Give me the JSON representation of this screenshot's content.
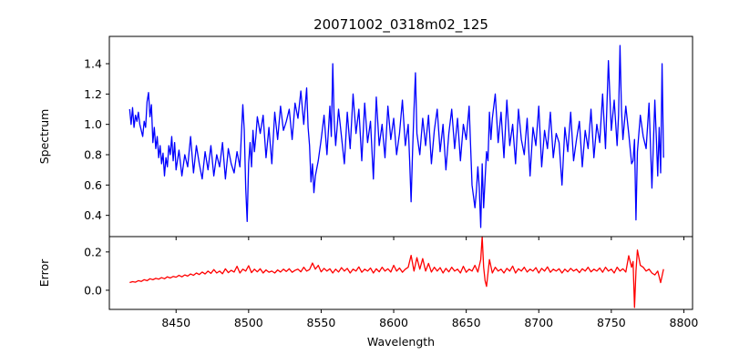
{
  "chart_data": [
    {
      "type": "line",
      "title": "20071002_0318m02_125",
      "xlabel": "",
      "ylabel": "Spectrum",
      "xlim": [
        8404,
        8806
      ],
      "ylim": [
        0.26,
        1.58
      ],
      "xticks": [
        8400,
        8450,
        8500,
        8550,
        8600,
        8650,
        8700,
        8750,
        8800
      ],
      "yticks": [
        0.4,
        0.6,
        0.8,
        1.0,
        1.2,
        1.4
      ],
      "ytick_labels": [
        "0.4",
        "0.6",
        "0.8",
        "1.0",
        "1.2",
        "1.4"
      ],
      "color": "#0000ff",
      "series": [
        {
          "x": [
            8418,
            8419,
            8420,
            8421,
            8422,
            8423,
            8424,
            8425,
            8426,
            8427,
            8428,
            8429,
            8430,
            8431,
            8432,
            8433,
            8434,
            8435,
            8436,
            8437,
            8438,
            8439,
            8440,
            8441,
            8442,
            8443,
            8444,
            8445,
            8446,
            8447,
            8448,
            8449,
            8450,
            8452,
            8454,
            8456,
            8458,
            8460,
            8462,
            8464,
            8466,
            8468,
            8470,
            8472,
            8474,
            8476,
            8478,
            8480,
            8482,
            8484,
            8486,
            8488,
            8490,
            8492,
            8494,
            8495,
            8496,
            8497,
            8498,
            8499,
            8500,
            8501,
            8502,
            8503,
            8504,
            8505,
            8506,
            8508,
            8510,
            8512,
            8514,
            8516,
            8518,
            8520,
            8522,
            8524,
            8526,
            8528,
            8530,
            8532,
            8534,
            8536,
            8538,
            8540,
            8541,
            8542,
            8543,
            8544,
            8545,
            8546,
            8548,
            8550,
            8552,
            8554,
            8556,
            8557,
            8558,
            8559,
            8560,
            8562,
            8564,
            8566,
            8568,
            8570,
            8572,
            8574,
            8576,
            8578,
            8580,
            8582,
            8584,
            8586,
            8588,
            8590,
            8592,
            8594,
            8596,
            8598,
            8600,
            8602,
            8604,
            8606,
            8608,
            8610,
            8611,
            8612,
            8613,
            8614,
            8615,
            8616,
            8618,
            8620,
            8622,
            8624,
            8626,
            8628,
            8630,
            8632,
            8634,
            8636,
            8638,
            8640,
            8642,
            8644,
            8646,
            8648,
            8650,
            8652,
            8654,
            8656,
            8657,
            8658,
            8659,
            8660,
            8661,
            8662,
            8663,
            8664,
            8665,
            8666,
            8667,
            8668,
            8670,
            8672,
            8674,
            8676,
            8678,
            8680,
            8682,
            8684,
            8686,
            8688,
            8690,
            8692,
            8694,
            8696,
            8698,
            8700,
            8702,
            8704,
            8706,
            8708,
            8710,
            8712,
            8714,
            8716,
            8718,
            8720,
            8722,
            8724,
            8726,
            8728,
            8730,
            8732,
            8734,
            8736,
            8738,
            8740,
            8742,
            8744,
            8746,
            8748,
            8750,
            8752,
            8754,
            8755,
            8756,
            8757,
            8758,
            8760,
            8762,
            8764,
            8765,
            8766,
            8767,
            8768,
            8770,
            8772,
            8774,
            8776,
            8778,
            8780,
            8781,
            8782,
            8783,
            8784,
            8785,
            8786
          ],
          "y": [
            1.1,
            1.0,
            1.11,
            0.98,
            1.06,
            1.02,
            1.08,
            1.0,
            0.96,
            0.92,
            1.02,
            0.98,
            1.15,
            1.21,
            1.05,
            1.13,
            0.88,
            0.98,
            0.84,
            0.92,
            0.78,
            0.86,
            0.74,
            0.81,
            0.66,
            0.78,
            0.72,
            0.86,
            0.8,
            0.92,
            0.76,
            0.88,
            0.7,
            0.83,
            0.66,
            0.8,
            0.72,
            0.92,
            0.68,
            0.86,
            0.74,
            0.64,
            0.82,
            0.7,
            0.86,
            0.66,
            0.8,
            0.72,
            0.88,
            0.64,
            0.84,
            0.74,
            0.68,
            0.82,
            0.72,
            0.93,
            1.13,
            0.96,
            0.58,
            0.36,
            0.74,
            0.88,
            0.72,
            0.96,
            0.82,
            0.92,
            1.05,
            0.94,
            1.06,
            0.78,
            0.98,
            0.74,
            1.08,
            0.9,
            1.12,
            0.96,
            1.02,
            1.1,
            0.9,
            1.14,
            1.04,
            1.22,
            1.0,
            1.24,
            0.98,
            0.86,
            0.62,
            0.74,
            0.55,
            0.66,
            0.76,
            0.9,
            1.06,
            0.8,
            1.12,
            0.92,
            1.4,
            1.02,
            0.86,
            1.1,
            0.92,
            0.74,
            1.08,
            0.84,
            1.2,
            0.94,
            1.1,
            0.76,
            1.14,
            0.88,
            1.02,
            0.64,
            1.18,
            0.86,
            1.0,
            0.78,
            1.12,
            0.9,
            1.04,
            0.8,
            0.94,
            1.16,
            0.86,
            1.0,
            0.76,
            0.49,
            0.82,
            1.1,
            1.34,
            0.94,
            0.8,
            1.04,
            0.86,
            1.06,
            0.74,
            0.96,
            1.1,
            0.82,
            1.0,
            0.7,
            0.94,
            1.1,
            0.84,
            1.04,
            0.76,
            1.0,
            0.9,
            1.12,
            0.6,
            0.45,
            0.56,
            0.72,
            0.58,
            0.32,
            0.74,
            0.45,
            0.64,
            0.82,
            0.76,
            1.08,
            0.9,
            1.04,
            1.2,
            0.88,
            1.08,
            0.78,
            1.16,
            0.86,
            1.0,
            0.74,
            1.1,
            0.9,
            0.8,
            1.04,
            0.66,
            0.98,
            0.86,
            1.12,
            0.72,
            0.96,
            0.84,
            1.08,
            0.78,
            0.94,
            0.88,
            0.6,
            0.98,
            0.82,
            1.08,
            0.76,
            0.9,
            1.02,
            0.72,
            0.96,
            0.84,
            1.1,
            0.78,
            1.0,
            0.88,
            1.2,
            0.84,
            1.42,
            0.96,
            1.16,
            0.86,
            1.06,
            1.52,
            1.1,
            0.9,
            1.12,
            0.94,
            0.74,
            0.76,
            0.9,
            0.37,
            0.82,
            1.06,
            0.92,
            0.84,
            1.14,
            0.58,
            1.16,
            0.92,
            0.66,
            0.98,
            0.68,
            1.4,
            0.78
          ]
        }
      ]
    },
    {
      "type": "line",
      "title": "",
      "xlabel": "Wavelength",
      "ylabel": "Error",
      "xlim": [
        8404,
        8806
      ],
      "ylim": [
        -0.1,
        0.28
      ],
      "xticks": [
        8400,
        8450,
        8500,
        8550,
        8600,
        8650,
        8700,
        8750,
        8800
      ],
      "yticks": [
        0.0,
        0.2
      ],
      "ytick_labels": [
        "0.0",
        "0.2"
      ],
      "color": "#ff0000",
      "series": [
        {
          "x": [
            8418,
            8420,
            8422,
            8424,
            8426,
            8428,
            8430,
            8432,
            8434,
            8436,
            8438,
            8440,
            8442,
            8444,
            8446,
            8448,
            8450,
            8452,
            8454,
            8456,
            8458,
            8460,
            8462,
            8464,
            8466,
            8468,
            8470,
            8472,
            8474,
            8476,
            8478,
            8480,
            8482,
            8484,
            8486,
            8488,
            8490,
            8492,
            8494,
            8496,
            8498,
            8500,
            8502,
            8504,
            8506,
            8508,
            8510,
            8512,
            8514,
            8516,
            8518,
            8520,
            8522,
            8524,
            8526,
            8528,
            8530,
            8532,
            8534,
            8536,
            8538,
            8540,
            8542,
            8544,
            8546,
            8548,
            8550,
            8552,
            8554,
            8556,
            8558,
            8560,
            8562,
            8564,
            8566,
            8568,
            8570,
            8572,
            8574,
            8576,
            8578,
            8580,
            8582,
            8584,
            8586,
            8588,
            8590,
            8592,
            8594,
            8596,
            8598,
            8600,
            8602,
            8604,
            8606,
            8608,
            8610,
            8612,
            8614,
            8616,
            8618,
            8620,
            8622,
            8624,
            8626,
            8628,
            8630,
            8632,
            8634,
            8636,
            8638,
            8640,
            8642,
            8644,
            8646,
            8648,
            8650,
            8652,
            8654,
            8656,
            8658,
            8660,
            8661,
            8662,
            8663,
            8664,
            8666,
            8668,
            8670,
            8672,
            8674,
            8676,
            8678,
            8680,
            8682,
            8684,
            8686,
            8688,
            8690,
            8692,
            8694,
            8696,
            8698,
            8700,
            8702,
            8704,
            8706,
            8708,
            8710,
            8712,
            8714,
            8716,
            8718,
            8720,
            8722,
            8724,
            8726,
            8728,
            8730,
            8732,
            8734,
            8736,
            8738,
            8740,
            8742,
            8744,
            8746,
            8748,
            8750,
            8752,
            8754,
            8756,
            8758,
            8760,
            8762,
            8764,
            8765,
            8766,
            8767,
            8768,
            8770,
            8772,
            8774,
            8776,
            8778,
            8780,
            8782,
            8784,
            8786
          ],
          "y": [
            0.04,
            0.045,
            0.042,
            0.05,
            0.046,
            0.055,
            0.05,
            0.06,
            0.055,
            0.062,
            0.058,
            0.066,
            0.06,
            0.07,
            0.064,
            0.072,
            0.068,
            0.078,
            0.07,
            0.08,
            0.074,
            0.085,
            0.078,
            0.09,
            0.082,
            0.095,
            0.085,
            0.1,
            0.088,
            0.108,
            0.09,
            0.1,
            0.086,
            0.112,
            0.092,
            0.104,
            0.095,
            0.125,
            0.09,
            0.11,
            0.1,
            0.128,
            0.092,
            0.11,
            0.096,
            0.112,
            0.09,
            0.106,
            0.094,
            0.1,
            0.09,
            0.106,
            0.095,
            0.11,
            0.098,
            0.112,
            0.094,
            0.104,
            0.11,
            0.096,
            0.12,
            0.1,
            0.108,
            0.142,
            0.11,
            0.13,
            0.096,
            0.114,
            0.1,
            0.112,
            0.09,
            0.11,
            0.095,
            0.118,
            0.1,
            0.114,
            0.09,
            0.11,
            0.1,
            0.122,
            0.094,
            0.11,
            0.1,
            0.116,
            0.09,
            0.112,
            0.096,
            0.12,
            0.1,
            0.112,
            0.095,
            0.13,
            0.1,
            0.116,
            0.094,
            0.11,
            0.12,
            0.182,
            0.1,
            0.17,
            0.11,
            0.165,
            0.1,
            0.14,
            0.095,
            0.12,
            0.1,
            0.118,
            0.09,
            0.114,
            0.096,
            0.12,
            0.1,
            0.11,
            0.09,
            0.125,
            0.094,
            0.11,
            0.1,
            0.13,
            0.095,
            0.16,
            0.28,
            0.12,
            0.05,
            0.02,
            0.16,
            0.09,
            0.12,
            0.1,
            0.11,
            0.09,
            0.114,
            0.1,
            0.126,
            0.09,
            0.112,
            0.1,
            0.12,
            0.095,
            0.11,
            0.1,
            0.118,
            0.09,
            0.114,
            0.1,
            0.122,
            0.094,
            0.11,
            0.1,
            0.112,
            0.09,
            0.11,
            0.096,
            0.114,
            0.1,
            0.11,
            0.092,
            0.112,
            0.1,
            0.12,
            0.096,
            0.11,
            0.1,
            0.116,
            0.094,
            0.12,
            0.1,
            0.11,
            0.09,
            0.12,
            0.1,
            0.112,
            0.095,
            0.18,
            0.12,
            0.15,
            -0.09,
            0.1,
            0.21,
            0.13,
            0.12,
            0.1,
            0.11,
            0.09,
            0.08,
            0.1,
            0.04,
            0.11
          ]
        }
      ]
    }
  ]
}
